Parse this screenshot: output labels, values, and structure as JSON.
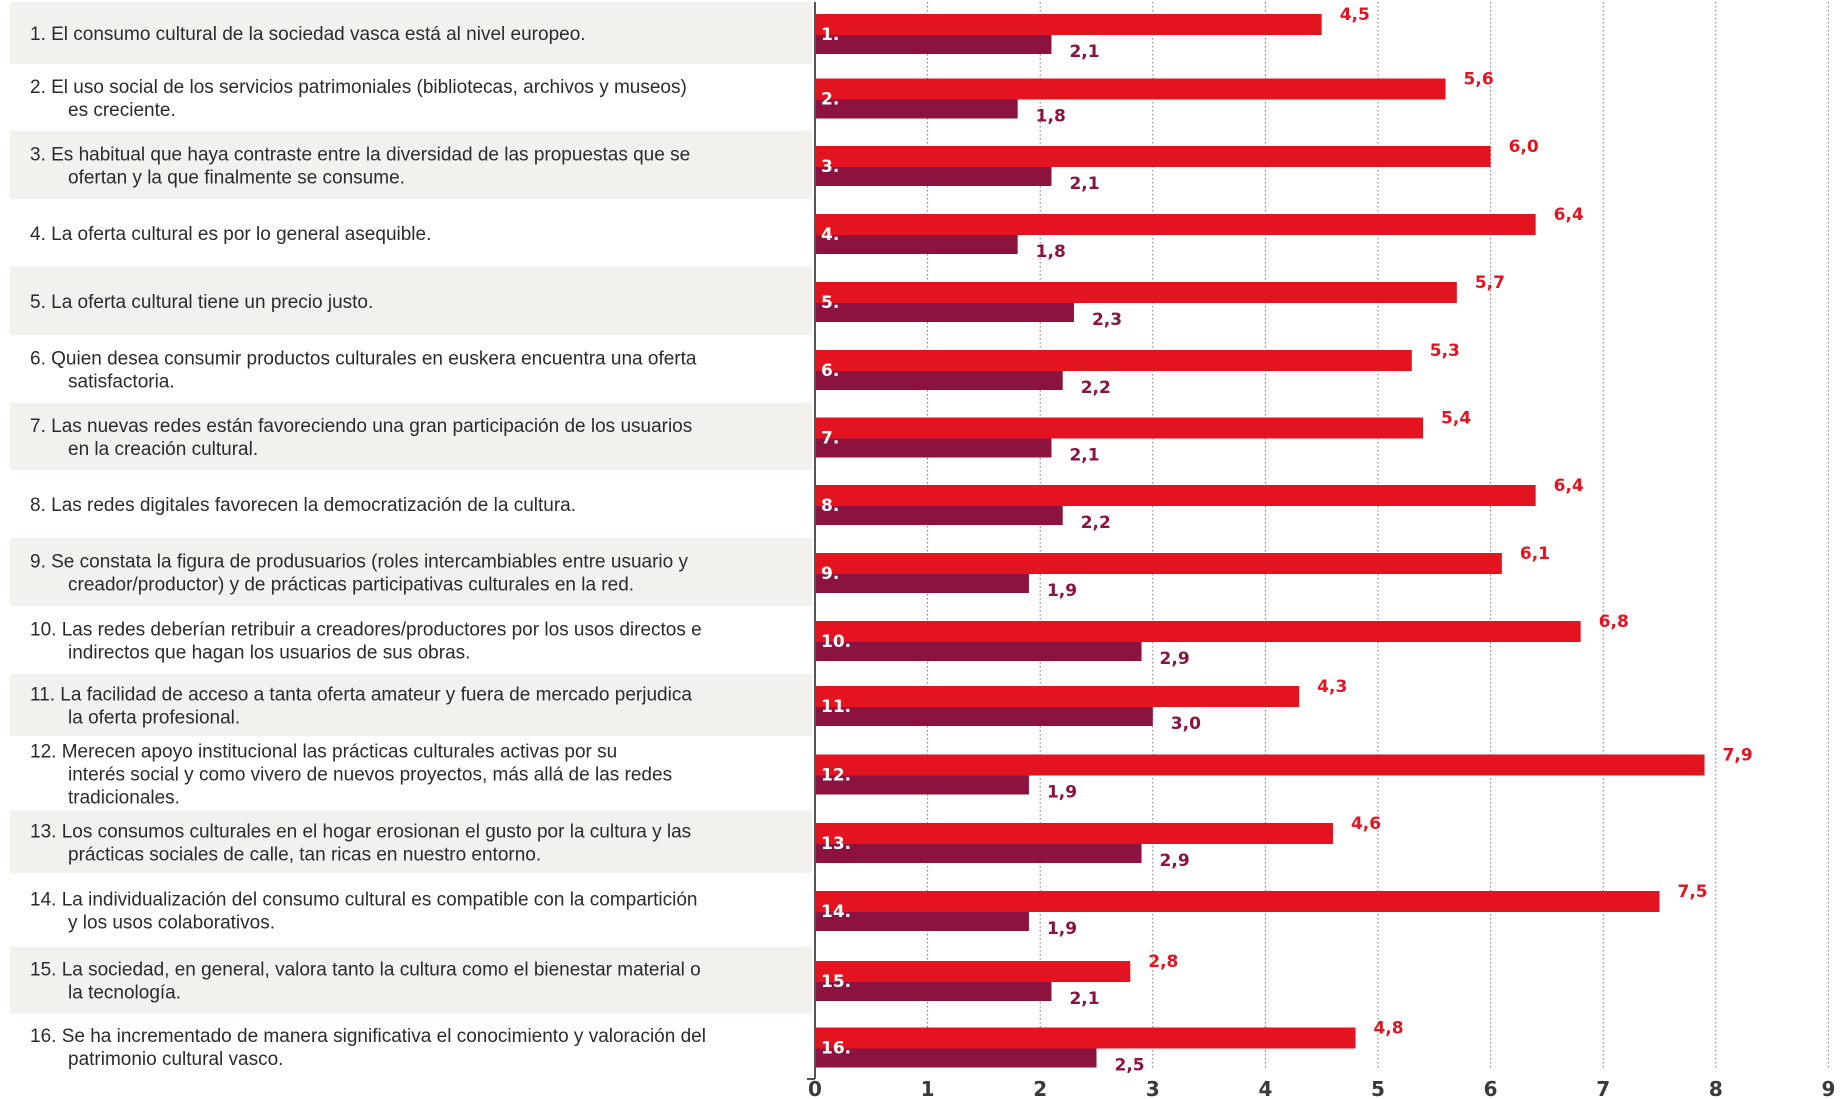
{
  "chart_data": {
    "type": "bar",
    "orientation": "horizontal",
    "xlim": [
      0,
      9
    ],
    "xticks": [
      "0",
      "1",
      "2",
      "3",
      "4",
      "5",
      "6",
      "7",
      "8",
      "9"
    ],
    "grid": "vertical dotted",
    "colors": {
      "series1": "#e3141f",
      "series2": "#8c1240",
      "row_band": "#f2f1ee",
      "axis": "#555555"
    },
    "categories": [
      {
        "num": "1.",
        "lines": [
          "1. El consumo cultural de la sociedad vasca está al nivel europeo."
        ]
      },
      {
        "num": "2.",
        "lines": [
          "2. El uso social de los servicios patrimoniales (bibliotecas, archivos y museos)",
          "es creciente."
        ]
      },
      {
        "num": "3.",
        "lines": [
          "3. Es habitual que haya contraste entre la diversidad de las propuestas que se",
          "ofertan y la que finalmente se consume."
        ]
      },
      {
        "num": "4.",
        "lines": [
          "4. La oferta cultural es por lo general asequible."
        ]
      },
      {
        "num": "5.",
        "lines": [
          "5. La oferta cultural tiene un precio justo."
        ]
      },
      {
        "num": "6.",
        "lines": [
          "6. Quien desea consumir productos culturales en euskera encuentra una oferta",
          "satisfactoria."
        ]
      },
      {
        "num": "7.",
        "lines": [
          "7. Las nuevas redes están favoreciendo una gran participación de los usuarios",
          "en la creación cultural."
        ]
      },
      {
        "num": "8.",
        "lines": [
          "8. Las redes digitales favorecen la democratización de la cultura."
        ]
      },
      {
        "num": "9.",
        "lines": [
          "9. Se constata la figura de produsuarios (roles intercambiables entre usuario y",
          "creador/productor) y de prácticas participativas culturales en la red."
        ]
      },
      {
        "num": "10.",
        "lines": [
          "10. Las redes deberían retribuir a creadores/productores por los usos directos e",
          "indirectos que hagan los usuarios de sus obras."
        ]
      },
      {
        "num": "11.",
        "lines": [
          "11. La facilidad de acceso a tanta oferta amateur y fuera de mercado perjudica",
          "la oferta profesional."
        ]
      },
      {
        "num": "12.",
        "lines": [
          "12. Merecen apoyo institucional las prácticas culturales activas por su",
          "interés social y como vivero de nuevos proyectos, más allá de las redes",
          "tradicionales."
        ]
      },
      {
        "num": "13.",
        "lines": [
          "13. Los consumos culturales en el hogar erosionan el gusto por la cultura y las",
          "prácticas sociales de calle, tan ricas en nuestro entorno."
        ]
      },
      {
        "num": "14.",
        "lines": [
          "14. La individualización del consumo cultural es compatible con la compartición",
          "y los usos colaborativos."
        ]
      },
      {
        "num": "15.",
        "lines": [
          "15. La sociedad, en general, valora tanto la cultura como el bienestar material o",
          "la tecnología."
        ]
      },
      {
        "num": "16.",
        "lines": [
          "16. Se ha incrementado de manera significativa el conocimiento y valoración del",
          "patrimonio cultural vasco."
        ]
      }
    ],
    "series": [
      {
        "values": [
          4.5,
          5.6,
          6.0,
          6.4,
          5.7,
          5.3,
          5.4,
          6.4,
          6.1,
          6.8,
          4.3,
          7.9,
          4.6,
          7.5,
          2.8,
          4.8
        ],
        "labels": [
          "4,5",
          "5,6",
          "6,0",
          "6,4",
          "5,7",
          "5,3",
          "5,4",
          "6,4",
          "6,1",
          "6,8",
          "4,3",
          "7,9",
          "4,6",
          "7,5",
          "2,8",
          "4,8"
        ]
      },
      {
        "values": [
          2.1,
          1.8,
          2.1,
          1.8,
          2.3,
          2.2,
          2.1,
          2.2,
          1.9,
          2.9,
          3.0,
          1.9,
          2.9,
          1.9,
          2.1,
          2.5
        ],
        "labels": [
          "2,1",
          "1,8",
          "2,1",
          "1,8",
          "2,3",
          "2,2",
          "2,1",
          "2,2",
          "1,9",
          "2,9",
          "3,0",
          "1,9",
          "2,9",
          "1,9",
          "2,1",
          "2,5"
        ]
      }
    ]
  }
}
